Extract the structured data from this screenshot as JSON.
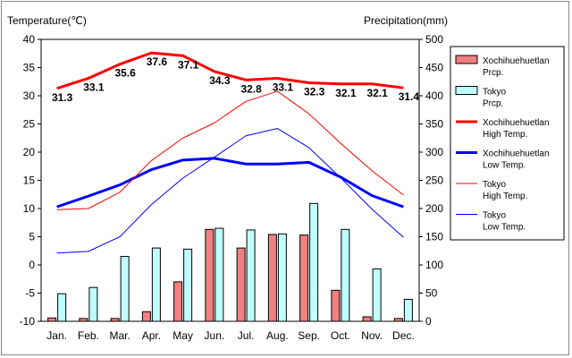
{
  "chart_data": {
    "type": "bar+line",
    "left_axis": {
      "title": "Temperature(℃)",
      "min": -10,
      "max": 40,
      "step": 5
    },
    "right_axis": {
      "title": "Precipitation(mm)",
      "min": 0,
      "max": 500,
      "step": 50
    },
    "categories": [
      "Jan.",
      "Feb.",
      "Mar.",
      "Apr.",
      "May",
      "Jun.",
      "Jul.",
      "Aug.",
      "Sep.",
      "Oct.",
      "Nov.",
      "Dec."
    ],
    "series": [
      {
        "name": "Xochihuehuetlan Prcp.",
        "kind": "bar",
        "axis": "right",
        "color": "#f08080",
        "values": [
          6,
          5,
          5,
          17,
          70,
          163,
          130,
          154,
          153,
          55,
          8,
          5
        ]
      },
      {
        "name": "Tokyo Prcp.",
        "kind": "bar",
        "axis": "right",
        "color": "#c0ffff",
        "values": [
          49,
          60,
          115,
          130,
          128,
          165,
          162,
          155,
          209,
          163,
          93,
          39
        ]
      },
      {
        "name": "Xochihuehuetlan High Temp.",
        "kind": "line",
        "axis": "left",
        "color": "#ff0000",
        "width": 3,
        "values": [
          31.3,
          33.1,
          35.6,
          37.6,
          37.1,
          34.3,
          32.8,
          33.1,
          32.3,
          32.1,
          32.1,
          31.4
        ],
        "labels": [
          "31.3",
          "33.1",
          "35.6",
          "37.6",
          "37.1",
          "34.3",
          "32.8",
          "33.1",
          "32.3",
          "32.1",
          "32.1",
          "31.4"
        ]
      },
      {
        "name": "Xochihuehuetlan Low Temp.",
        "kind": "line",
        "axis": "left",
        "color": "#0000ff",
        "width": 3,
        "values": [
          10.3,
          12.2,
          14.2,
          16.9,
          18.6,
          18.9,
          17.9,
          17.9,
          18.2,
          15.6,
          12.3,
          10.3
        ]
      },
      {
        "name": "Tokyo High Temp.",
        "kind": "line",
        "axis": "left",
        "color": "#ff0000",
        "width": 1,
        "values": [
          9.8,
          10.0,
          12.9,
          18.5,
          22.5,
          25.2,
          29.0,
          30.8,
          26.8,
          21.6,
          16.7,
          12.4
        ]
      },
      {
        "name": "Tokyo Low Temp.",
        "kind": "line",
        "axis": "left",
        "color": "#0000ff",
        "width": 1,
        "values": [
          2.1,
          2.4,
          5.0,
          10.7,
          15.4,
          19.1,
          22.9,
          24.2,
          20.8,
          15.5,
          9.9,
          4.9
        ]
      }
    ],
    "legend": {
      "position": "right",
      "entries": [
        {
          "line1": "Xochihuehuetlan",
          "line2": "Prcp."
        },
        {
          "line1": "Tokyo",
          "line2": "Prcp."
        },
        {
          "line1": "Xochihuehuetlan",
          "line2": "High Temp."
        },
        {
          "line1": "Xochihuehuetlan",
          "line2": "Low Temp."
        },
        {
          "line1": "Tokyo",
          "line2": "High Temp."
        },
        {
          "line1": "Tokyo",
          "line2": "Low Temp."
        }
      ]
    },
    "grid": false
  }
}
